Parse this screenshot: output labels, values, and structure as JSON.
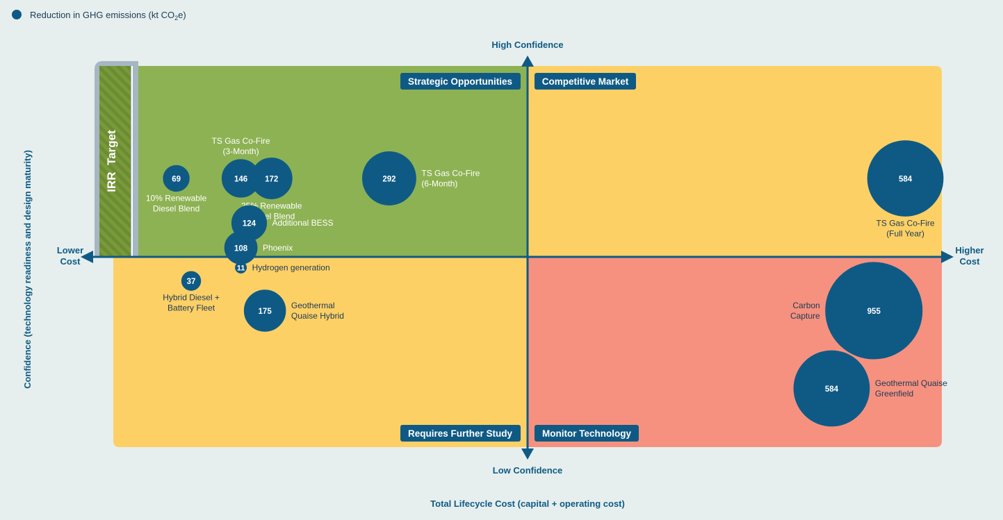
{
  "colors": {
    "background": "#e6efee",
    "strategic": "#8db253",
    "competitive": "#fdd066",
    "further_study": "#fdd066",
    "monitor": "#f6917f",
    "bubble": "#0f5a85",
    "axis": "#0f5a85",
    "irr_bar": "#a7b6c3",
    "irr_hatch_a": "#7a9a3a",
    "irr_hatch_b": "#6b8c33",
    "label_dark": "#1b3a55",
    "label_light": "#ffffff"
  },
  "legend": {
    "label_main": "Reduction in GHG emissions (kt CO",
    "label_sub": "2",
    "label_end": "e)"
  },
  "axes": {
    "top": "High Confidence",
    "bottom": "Low Confidence",
    "left_line1": "Lower",
    "left_line2": "Cost",
    "right_line1": "Higher",
    "right_line2": "Cost",
    "xlabel": "Total Lifecycle Cost (capital + operating cost)",
    "ylabel": "Confidence (technology readiness and design maturity)"
  },
  "quadrants": {
    "strategic": "Strategic Opportunities",
    "competitive": "Competitive Market",
    "further_study": "Requires Further Study",
    "monitor": "Monitor Technology"
  },
  "irr_label": "IRR  Target",
  "chart_data": {
    "type": "scatter",
    "title": "",
    "xlabel": "Total Lifecycle Cost (capital + operating cost)",
    "ylabel": "Confidence (technology readiness and design maturity)",
    "x_range": [
      "Lower Cost",
      "Higher Cost"
    ],
    "y_range": [
      "Low Confidence",
      "High Confidence"
    ],
    "size_legend": "Reduction in GHG emissions (kt CO2e)",
    "points": [
      {
        "value": 69,
        "x": 0.076,
        "y": 0.705,
        "label": [
          "10% Renewable",
          "Diesel Blend"
        ],
        "label_pos": "below"
      },
      {
        "value": 146,
        "x": 0.154,
        "y": 0.705,
        "label": [
          "TS Gas Co-Fire",
          "(3-Month)"
        ],
        "label_pos": "above"
      },
      {
        "value": 172,
        "x": 0.191,
        "y": 0.705,
        "label": [
          "25% Renewable",
          "Diesel Blend"
        ],
        "label_pos": "below"
      },
      {
        "value": 292,
        "x": 0.333,
        "y": 0.705,
        "label": [
          "TS Gas Co-Fire",
          "(6-Month)"
        ],
        "label_pos": "right"
      },
      {
        "value": 584,
        "x": 0.956,
        "y": 0.705,
        "label": [
          "TS Gas Co-Fire",
          "(Full Year)"
        ],
        "label_pos": "below"
      },
      {
        "value": 124,
        "x": 0.164,
        "y": 0.588,
        "label": [
          "Additional BESS"
        ],
        "label_pos": "right"
      },
      {
        "value": 108,
        "x": 0.154,
        "y": 0.523,
        "label": [
          "Phoenix"
        ],
        "label_pos": "right"
      },
      {
        "value": 11,
        "x": 0.154,
        "y": 0.471,
        "label": [
          "Hydrogen generation"
        ],
        "label_pos": "right"
      },
      {
        "value": 37,
        "x": 0.094,
        "y": 0.436,
        "label": [
          "Hybrid Diesel +",
          "Battery Fleet"
        ],
        "label_pos": "below"
      },
      {
        "value": 175,
        "x": 0.183,
        "y": 0.358,
        "label": [
          "Geothermal",
          "Quaise Hybrid"
        ],
        "label_pos": "right"
      },
      {
        "value": 955,
        "x": 0.918,
        "y": 0.358,
        "label": [
          "Carbon",
          "Capture"
        ],
        "label_pos": "left"
      },
      {
        "value": 584,
        "x": 0.867,
        "y": 0.154,
        "label": [
          "Geothermal Quaise",
          "Greenfield"
        ],
        "label_pos": "right"
      }
    ]
  }
}
